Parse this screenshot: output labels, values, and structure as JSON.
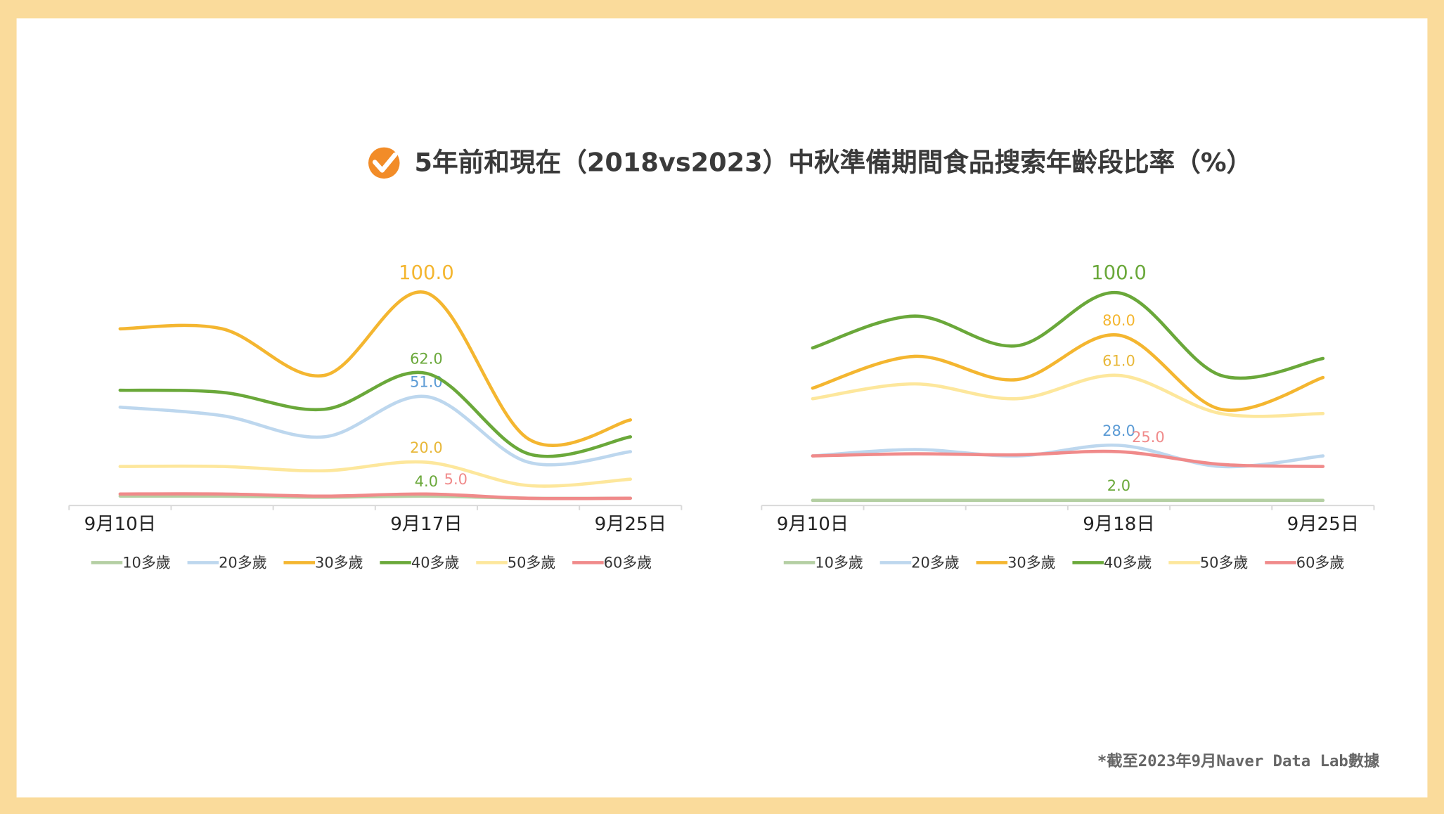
{
  "title": "5年前和現在（2018vs2023）中秋準備期間食品搜索年齡段比率（%）",
  "footnote": "*截至2023年9月Naver Data Lab數據",
  "chart_data": [
    {
      "type": "line",
      "categories": [
        "9月10日",
        null,
        null,
        "9月17日",
        null,
        "9月25日"
      ],
      "ylim": [
        0,
        100
      ],
      "legend": "bottom",
      "series": [
        {
          "name": "10多歲",
          "color": "#b4cfa3",
          "label_color": "#6aa83a",
          "values": [
            4,
            4,
            3.5,
            4,
            3,
            3
          ],
          "value_labels": [
            null,
            null,
            null,
            "4.0",
            null,
            null
          ]
        },
        {
          "name": "20多歲",
          "color": "#bdd7ee",
          "label_color": "#5b9bd5",
          "values": [
            46,
            42,
            32,
            51,
            20,
            25
          ],
          "value_labels": [
            null,
            null,
            null,
            "51.0",
            null,
            null
          ]
        },
        {
          "name": "30多歲",
          "color": "#f4b630",
          "label_color": "#f4b630",
          "values": [
            83,
            83,
            61,
            100,
            31,
            40
          ],
          "value_labels": [
            null,
            null,
            null,
            "100.0",
            null,
            null
          ]
        },
        {
          "name": "40多歲",
          "color": "#6aa83a",
          "label_color": "#6aa83a",
          "values": [
            54,
            53,
            45,
            62,
            24,
            32
          ],
          "value_labels": [
            null,
            null,
            null,
            "62.0",
            null,
            null
          ]
        },
        {
          "name": "50多歲",
          "color": "#fde79c",
          "label_color": "#e8b83a",
          "values": [
            18,
            18,
            16,
            20,
            9,
            12
          ],
          "value_labels": [
            null,
            null,
            null,
            "20.0",
            null,
            null
          ]
        },
        {
          "name": "60多歲",
          "color": "#f08a8a",
          "label_color": "#f08a8a",
          "values": [
            5,
            5,
            4,
            5,
            3,
            3
          ],
          "value_labels": [
            null,
            null,
            null,
            "5.0",
            null,
            null
          ]
        }
      ]
    },
    {
      "type": "line",
      "categories": [
        "9月10日",
        null,
        null,
        "9月18日",
        null,
        "9月25日"
      ],
      "ylim": [
        0,
        100
      ],
      "legend": "bottom",
      "series": [
        {
          "name": "10多歲",
          "color": "#b4cfa3",
          "label_color": "#6aa83a",
          "values": [
            2,
            2,
            2,
            2,
            2,
            2
          ],
          "value_labels": [
            null,
            null,
            null,
            "2.0",
            null,
            null
          ]
        },
        {
          "name": "20多歲",
          "color": "#bdd7ee",
          "label_color": "#5b9bd5",
          "values": [
            23,
            26,
            23,
            28,
            18,
            23
          ],
          "value_labels": [
            null,
            null,
            null,
            "28.0",
            null,
            null
          ]
        },
        {
          "name": "30多歲",
          "color": "#f4b630",
          "label_color": "#f4b630",
          "values": [
            55,
            70,
            59,
            80,
            45,
            60
          ],
          "value_labels": [
            null,
            null,
            null,
            "80.0",
            null,
            null
          ]
        },
        {
          "name": "40多歲",
          "color": "#6aa83a",
          "label_color": "#6aa83a",
          "values": [
            74,
            89,
            75,
            100,
            61,
            69
          ],
          "value_labels": [
            null,
            null,
            null,
            "100.0",
            null,
            null
          ]
        },
        {
          "name": "50多歲",
          "color": "#fde79c",
          "label_color": "#e8b83a",
          "values": [
            50,
            57,
            50,
            61,
            43,
            43
          ],
          "value_labels": [
            null,
            null,
            null,
            "61.0",
            null,
            null
          ]
        },
        {
          "name": "60多歲",
          "color": "#f08a8a",
          "label_color": "#f08a8a",
          "values": [
            23,
            24,
            23.5,
            25,
            19,
            18
          ],
          "value_labels": [
            null,
            null,
            null,
            "25.0",
            null,
            null
          ]
        }
      ]
    }
  ]
}
